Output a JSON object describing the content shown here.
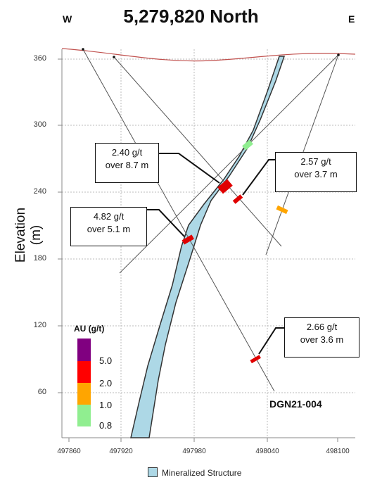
{
  "header": {
    "title": "5,279,820 North",
    "west": "W",
    "east": "E"
  },
  "axes": {
    "ylabel": "Elevation (m)",
    "y_ticks": [
      "360",
      "300",
      "240",
      "180",
      "120",
      "60"
    ],
    "x_ticks": [
      "497860",
      "497920",
      "497980",
      "498040",
      "498100"
    ]
  },
  "callouts": [
    {
      "grade": "2.40 g/t",
      "length": "over 8.7 m"
    },
    {
      "grade": "2.57 g/t",
      "length": "over 3.7 m"
    },
    {
      "grade": "4.82 g/t",
      "length": "over 5.1 m"
    },
    {
      "grade": "2.66 g/t",
      "length": "over 3.6 m"
    }
  ],
  "drillhole_label": "DGN21-004",
  "au_legend": {
    "title": "AU (g/t)",
    "thresholds": [
      "5.0",
      "2.0",
      "1.0",
      "0.8"
    ],
    "colors": {
      "gt5": "#800080",
      "2to5": "#ff0000",
      "1to2": "#ffa500",
      "0.8to1": "#90ee90"
    }
  },
  "structure_legend": "Mineralized Structure",
  "colors": {
    "mineralized_structure": "#add8e6",
    "topography": "#c0504d",
    "drill_trace": "#555555"
  }
}
